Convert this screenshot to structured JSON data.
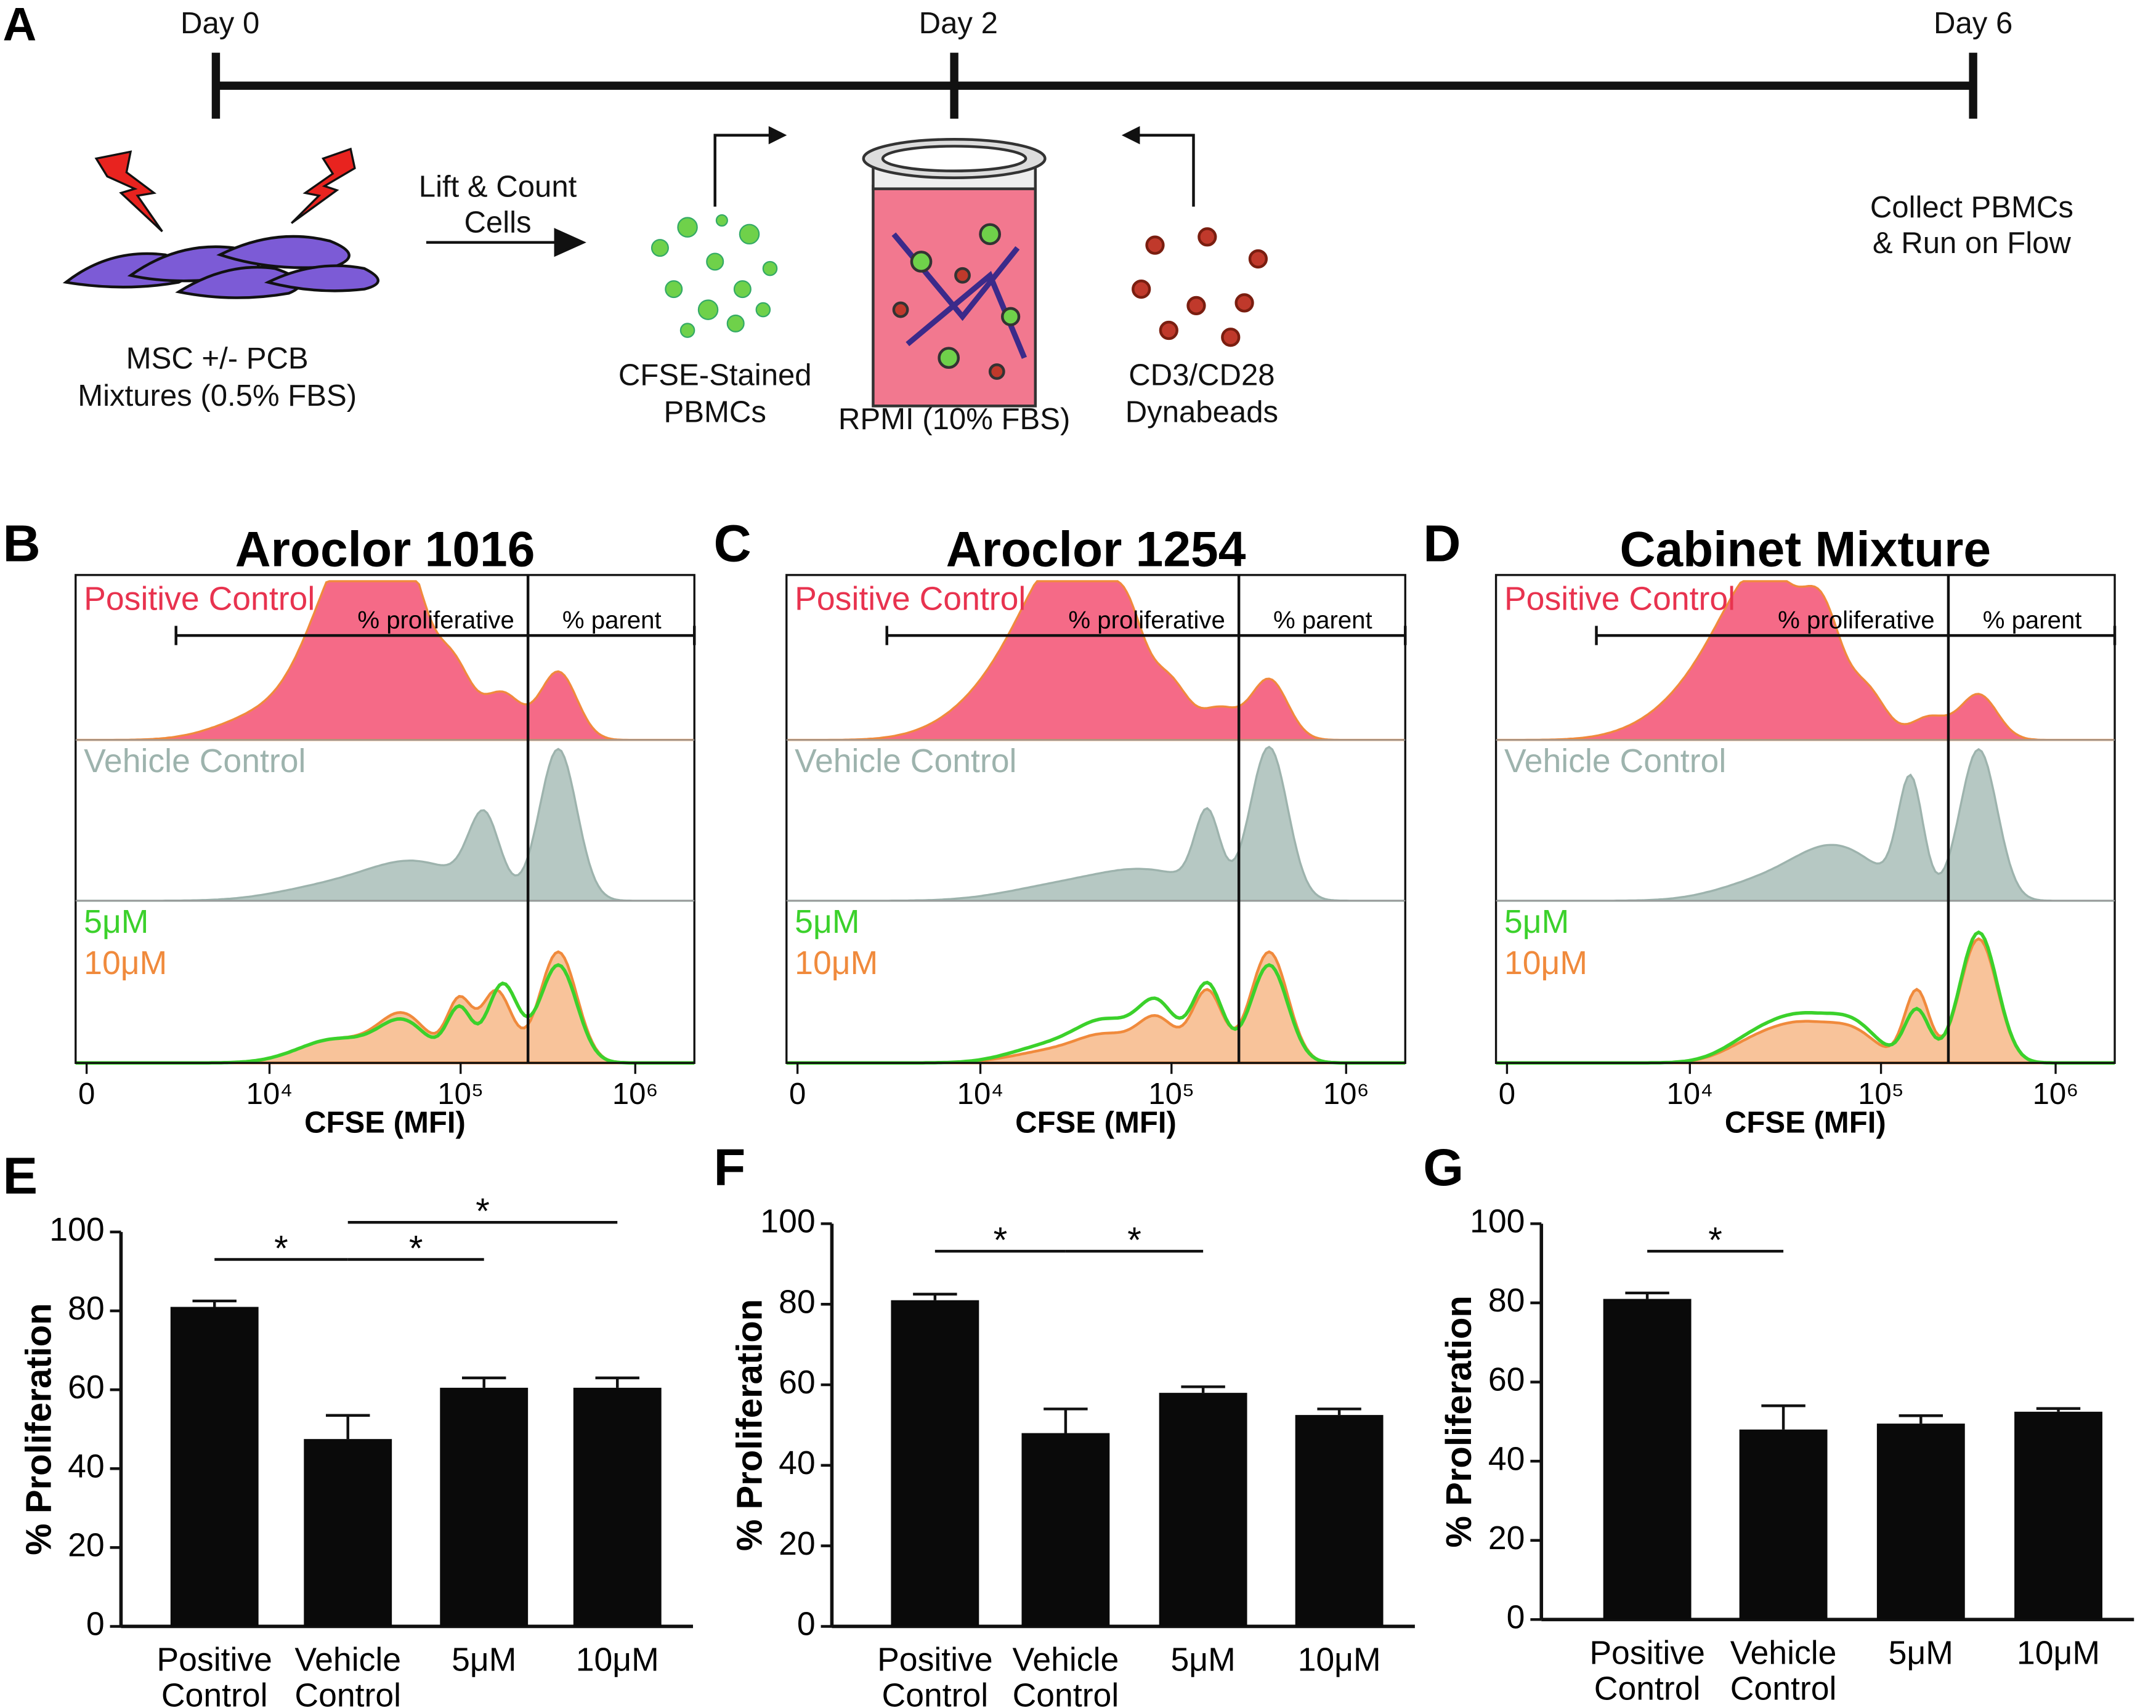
{
  "panel_a": {
    "label": "A",
    "timeline": [
      "Day 0",
      "Day 2",
      "Day 6"
    ],
    "msc": [
      "MSC +/- PCB",
      "Mixtures (0.5% FBS)"
    ],
    "lift": [
      "Lift & Count",
      "Cells"
    ],
    "pbmc": [
      "CFSE-Stained",
      "PBMCs"
    ],
    "medium": "RPMI (10% FBS)",
    "beads": [
      "CD3/CD28",
      "Dynabeads"
    ],
    "collect": [
      "Collect PBMCs",
      "& Run on Flow"
    ]
  },
  "flow_panels": [
    {
      "label": "B",
      "title": "Aroclor 1016"
    },
    {
      "label": "C",
      "title": "Aroclor 1254"
    },
    {
      "label": "D",
      "title": "Cabinet Mixture"
    }
  ],
  "flow_common": {
    "legend": [
      "Positive Control",
      "Vehicle Control",
      "5μM",
      "10μM"
    ],
    "gates": [
      "% proliferative",
      "% parent"
    ],
    "xlabel": "CFSE (MFI)",
    "xticks": [
      "0",
      "10⁴",
      "10⁵",
      "10⁶"
    ]
  },
  "chart_data": [
    {
      "type": "bar",
      "label": "E",
      "ylabel": "% Proliferation",
      "categories": [
        "Positive Control",
        "Vehicle Control",
        "5μM",
        "10μM"
      ],
      "values": [
        81,
        47.5,
        60.5,
        60.5
      ],
      "errors": [
        1.5,
        6,
        2.5,
        2.5
      ],
      "color": "#0a0a0a",
      "ylim": [
        0,
        100
      ],
      "yticks": [
        0,
        20,
        40,
        60,
        80,
        100
      ],
      "annotations": [
        {
          "text": "*",
          "between": [
            "Positive Control",
            "Vehicle Control"
          ]
        },
        {
          "text": "*",
          "between": [
            "Vehicle Control",
            "5μM"
          ]
        },
        {
          "text": "*",
          "between": [
            "Vehicle Control",
            "10μM"
          ]
        }
      ]
    },
    {
      "type": "bar",
      "label": "F",
      "ylabel": "% Proliferation",
      "categories": [
        "Positive Control",
        "Vehicle Control",
        "5μM",
        "10μM"
      ],
      "values": [
        81,
        48,
        58,
        52.5
      ],
      "errors": [
        1.5,
        6,
        1.5,
        1.5
      ],
      "color": "#0a0a0a",
      "ylim": [
        0,
        100
      ],
      "yticks": [
        0,
        20,
        40,
        60,
        80,
        100
      ],
      "annotations": [
        {
          "text": "*",
          "between": [
            "Positive Control",
            "Vehicle Control"
          ]
        },
        {
          "text": "*",
          "between": [
            "Vehicle Control",
            "5μM"
          ]
        }
      ]
    },
    {
      "type": "bar",
      "label": "G",
      "ylabel": "% Proliferation",
      "categories": [
        "Positive Control",
        "Vehicle Control",
        "5μM",
        "10μM"
      ],
      "values": [
        81,
        48,
        49.5,
        52.5
      ],
      "errors": [
        1.5,
        6,
        2,
        0.8
      ],
      "color": "#0a0a0a",
      "ylim": [
        0,
        100
      ],
      "yticks": [
        0,
        20,
        40,
        60,
        80,
        100
      ],
      "annotations": [
        {
          "text": "*",
          "between": [
            "Positive Control",
            "Vehicle Control"
          ]
        }
      ]
    }
  ]
}
